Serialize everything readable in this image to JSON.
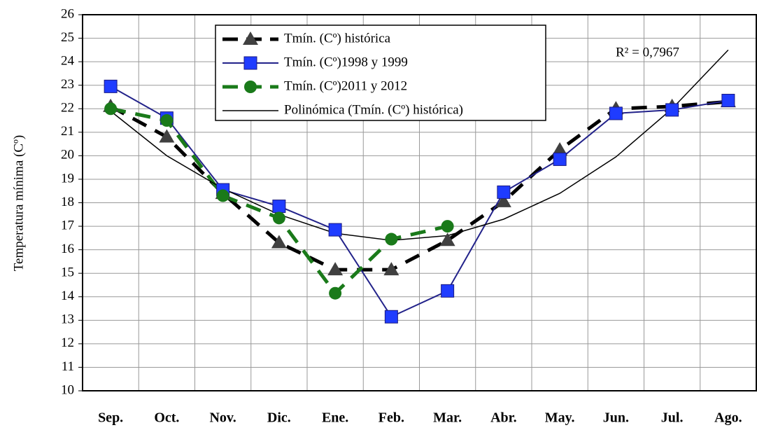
{
  "chart_data": {
    "type": "line",
    "ylabel": "Temperatura mínima (Cº)",
    "annotation": "R² = 0,7967",
    "categories": [
      "Sep.",
      "Oct.",
      "Nov.",
      "Dic.",
      "Ene.",
      "Feb.",
      "Mar.",
      "Abr.",
      "May.",
      "Jun.",
      "Jul.",
      "Ago."
    ],
    "ylim": [
      10,
      26
    ],
    "yticks": [
      10,
      11,
      12,
      13,
      14,
      15,
      16,
      17,
      18,
      19,
      20,
      21,
      22,
      23,
      24,
      25,
      26
    ],
    "grid": true,
    "legend": "top",
    "series": [
      {
        "name": "Tmín. (Cº) histórica",
        "color": "#000000",
        "marker_color": "#404040",
        "marker": "triangle",
        "dashed": true,
        "line_width": 5,
        "values": [
          22.1,
          20.8,
          18.4,
          16.3,
          15.15,
          15.15,
          16.4,
          18.05,
          20.25,
          22.0,
          22.1,
          22.3
        ]
      },
      {
        "name": "Tmín. (Cº)1998 y 1999",
        "color": "#22228a",
        "marker_color": "#1f3cff",
        "marker": "square",
        "dashed": false,
        "line_width": 2,
        "values": [
          22.95,
          21.6,
          18.55,
          17.85,
          16.85,
          13.15,
          14.25,
          18.45,
          19.85,
          21.8,
          21.95,
          22.35
        ]
      },
      {
        "name": "Tmín. (Cº)2011 y 2012",
        "color": "#1a7a1a",
        "marker_color": "#1a7a1a",
        "marker": "circle",
        "dashed": true,
        "line_width": 5,
        "values": [
          22.0,
          21.5,
          18.3,
          17.35,
          14.15,
          16.45,
          17.0,
          null,
          null,
          null,
          null,
          null
        ]
      },
      {
        "name": "Polinómica (Tmín. (Cº) histórica)",
        "color": "#000000",
        "marker": "none",
        "dashed": false,
        "line_width": 1.5,
        "values": [
          21.9,
          20.0,
          18.6,
          17.5,
          16.7,
          16.4,
          16.6,
          17.3,
          18.4,
          19.95,
          22.0,
          24.5
        ]
      }
    ]
  }
}
